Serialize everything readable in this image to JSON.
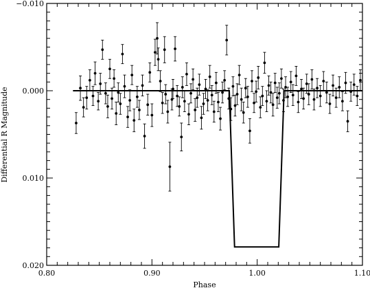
{
  "chart_data": {
    "type": "scatter",
    "title": "",
    "xlabel": "Phase",
    "ylabel": "Differential R Magnitude",
    "xlim": [
      0.8,
      1.1
    ],
    "ylim": [
      -0.01,
      0.02
    ],
    "y_inverted": true,
    "x_ticks": [
      0.8,
      0.9,
      1.0,
      1.1
    ],
    "x_tick_labels": [
      "0.80",
      "0.90",
      "1.00",
      "1.10"
    ],
    "y_ticks": [
      -0.01,
      0.0,
      0.01,
      0.02
    ],
    "y_tick_labels": [
      "−0.010",
      "0.000",
      "0.010",
      "0.020"
    ],
    "grid": false,
    "model_line": {
      "x": [
        0.825,
        0.9735,
        0.9785,
        1.0205,
        1.0255,
        1.1
      ],
      "y": [
        0.0,
        0.0,
        0.0179,
        0.0179,
        0.0,
        0.0
      ]
    },
    "series": [
      {
        "points": [
          {
            "x": 0.828,
            "y": 0.0037,
            "e": 0.0012
          },
          {
            "x": 0.832,
            "y": -0.0003,
            "e": 0.0014
          },
          {
            "x": 0.835,
            "y": 0.0019,
            "e": 0.0011
          },
          {
            "x": 0.838,
            "y": 0.0008,
            "e": 0.0013
          },
          {
            "x": 0.841,
            "y": -0.0012,
            "e": 0.0012
          },
          {
            "x": 0.844,
            "y": 0.0006,
            "e": 0.0011
          },
          {
            "x": 0.846,
            "y": -0.002,
            "e": 0.0013
          },
          {
            "x": 0.849,
            "y": 0.0012,
            "e": 0.001
          },
          {
            "x": 0.851,
            "y": -0.0008,
            "e": 0.0012
          },
          {
            "x": 0.853,
            "y": -0.0047,
            "e": 0.0011
          },
          {
            "x": 0.856,
            "y": 0.0003,
            "e": 0.0012
          },
          {
            "x": 0.858,
            "y": 0.0018,
            "e": 0.0013
          },
          {
            "x": 0.86,
            "y": -0.0025,
            "e": 0.0011
          },
          {
            "x": 0.862,
            "y": 0.0009,
            "e": 0.0012
          },
          {
            "x": 0.864,
            "y": -0.0014,
            "e": 0.001
          },
          {
            "x": 0.866,
            "y": 0.0026,
            "e": 0.0013
          },
          {
            "x": 0.868,
            "y": 0.0002,
            "e": 0.0011
          },
          {
            "x": 0.87,
            "y": 0.0015,
            "e": 0.0012
          },
          {
            "x": 0.872,
            "y": -0.0042,
            "e": 0.0011
          },
          {
            "x": 0.874,
            "y": -0.0005,
            "e": 0.0013
          },
          {
            "x": 0.877,
            "y": 0.003,
            "e": 0.0012
          },
          {
            "x": 0.879,
            "y": 0.0011,
            "e": 0.0012
          },
          {
            "x": 0.881,
            "y": -0.0018,
            "e": 0.0011
          },
          {
            "x": 0.883,
            "y": 0.0034,
            "e": 0.0013
          },
          {
            "x": 0.886,
            "y": 0.0007,
            "e": 0.0012
          },
          {
            "x": 0.888,
            "y": 0.0022,
            "e": 0.0011
          },
          {
            "x": 0.891,
            "y": -0.0006,
            "e": 0.0012
          },
          {
            "x": 0.893,
            "y": 0.0052,
            "e": 0.0014
          },
          {
            "x": 0.896,
            "y": 0.0016,
            "e": 0.0012
          },
          {
            "x": 0.898,
            "y": -0.0021,
            "e": 0.0011
          },
          {
            "x": 0.9,
            "y": 0.0028,
            "e": 0.0013
          },
          {
            "x": 0.903,
            "y": -0.0044,
            "e": 0.0015
          },
          {
            "x": 0.905,
            "y": -0.006,
            "e": 0.0018
          },
          {
            "x": 0.906,
            "y": -0.0036,
            "e": 0.0013
          },
          {
            "x": 0.908,
            "y": -0.0011,
            "e": 0.0012
          },
          {
            "x": 0.91,
            "y": 0.0014,
            "e": 0.0012
          },
          {
            "x": 0.912,
            "y": -0.0047,
            "e": 0.0015
          },
          {
            "x": 0.913,
            "y": 0.0004,
            "e": 0.0011
          },
          {
            "x": 0.915,
            "y": 0.0024,
            "e": 0.0013
          },
          {
            "x": 0.917,
            "y": 0.0087,
            "e": 0.0028
          },
          {
            "x": 0.919,
            "y": 0.001,
            "e": 0.0012
          },
          {
            "x": 0.92,
            "y": -0.0002,
            "e": 0.0011
          },
          {
            "x": 0.922,
            "y": -0.0048,
            "e": 0.0014
          },
          {
            "x": 0.924,
            "y": 0.0006,
            "e": 0.0012
          },
          {
            "x": 0.926,
            "y": 0.0018,
            "e": 0.0011
          },
          {
            "x": 0.928,
            "y": 0.0053,
            "e": 0.0016
          },
          {
            "x": 0.929,
            "y": -0.0004,
            "e": 0.0012
          },
          {
            "x": 0.931,
            "y": 0.0012,
            "e": 0.0012
          },
          {
            "x": 0.933,
            "y": -0.0019,
            "e": 0.0013
          },
          {
            "x": 0.935,
            "y": 0.0027,
            "e": 0.0012
          },
          {
            "x": 0.937,
            "y": 0.0003,
            "e": 0.0011
          },
          {
            "x": 0.939,
            "y": -0.0013,
            "e": 0.0012
          },
          {
            "x": 0.941,
            "y": 0.0022,
            "e": 0.0013
          },
          {
            "x": 0.943,
            "y": 0.0008,
            "e": 0.0011
          },
          {
            "x": 0.945,
            "y": -0.0007,
            "e": 0.0012
          },
          {
            "x": 0.947,
            "y": 0.0031,
            "e": 0.0013
          },
          {
            "x": 0.949,
            "y": 0.0015,
            "e": 0.0012
          },
          {
            "x": 0.951,
            "y": -0.0002,
            "e": 0.0011
          },
          {
            "x": 0.953,
            "y": 0.0011,
            "e": 0.0012
          },
          {
            "x": 0.955,
            "y": -0.0016,
            "e": 0.0013
          },
          {
            "x": 0.957,
            "y": 0.0005,
            "e": 0.0011
          },
          {
            "x": 0.959,
            "y": 0.0024,
            "e": 0.0012
          },
          {
            "x": 0.961,
            "y": -0.0009,
            "e": 0.0012
          },
          {
            "x": 0.963,
            "y": 0.0013,
            "e": 0.0011
          },
          {
            "x": 0.965,
            "y": 0.0032,
            "e": 0.0013
          },
          {
            "x": 0.967,
            "y": 0.0002,
            "e": 0.0012
          },
          {
            "x": 0.969,
            "y": -0.0012,
            "e": 0.0011
          },
          {
            "x": 0.971,
            "y": -0.0058,
            "e": 0.0017
          },
          {
            "x": 0.973,
            "y": 0.0009,
            "e": 0.0012
          },
          {
            "x": 0.975,
            "y": 0.0021,
            "e": 0.0013
          },
          {
            "x": 0.977,
            "y": -0.0005,
            "e": 0.0011
          },
          {
            "x": 0.979,
            "y": 0.0017,
            "e": 0.0012
          },
          {
            "x": 0.981,
            "y": 0.0004,
            "e": 0.0012
          },
          {
            "x": 0.983,
            "y": -0.0018,
            "e": 0.0011
          },
          {
            "x": 0.985,
            "y": 0.001,
            "e": 0.0013
          },
          {
            "x": 0.987,
            "y": 0.0025,
            "e": 0.0012
          },
          {
            "x": 0.989,
            "y": -0.0003,
            "e": 0.0011
          },
          {
            "x": 0.991,
            "y": 0.0007,
            "e": 0.0012
          },
          {
            "x": 0.993,
            "y": 0.0046,
            "e": 0.0014
          },
          {
            "x": 0.995,
            "y": -0.0011,
            "e": 0.0012
          },
          {
            "x": 0.997,
            "y": 0.0014,
            "e": 0.0011
          },
          {
            "x": 0.999,
            "y": 0.0001,
            "e": 0.0012
          },
          {
            "x": 1.001,
            "y": -0.0015,
            "e": 0.0013
          },
          {
            "x": 1.003,
            "y": 0.0019,
            "e": 0.0012
          },
          {
            "x": 1.005,
            "y": 0.0006,
            "e": 0.0011
          },
          {
            "x": 1.007,
            "y": -0.0032,
            "e": 0.0012
          },
          {
            "x": 1.009,
            "y": 0.0012,
            "e": 0.0012
          },
          {
            "x": 1.011,
            "y": -0.0006,
            "e": 0.0011
          },
          {
            "x": 1.013,
            "y": 0.0002,
            "e": 0.0012
          },
          {
            "x": 1.015,
            "y": 0.0016,
            "e": 0.0013
          },
          {
            "x": 1.017,
            "y": -0.0009,
            "e": 0.0011
          },
          {
            "x": 1.019,
            "y": 0.0008,
            "e": 0.0012
          },
          {
            "x": 1.021,
            "y": 0.0003,
            "e": 0.0012
          },
          {
            "x": 1.023,
            "y": -0.0014,
            "e": 0.0011
          },
          {
            "x": 1.025,
            "y": 0.0011,
            "e": 0.0013
          },
          {
            "x": 1.027,
            "y": -0.0004,
            "e": 0.0012
          },
          {
            "x": 1.029,
            "y": 0.0007,
            "e": 0.0011
          },
          {
            "x": 1.032,
            "y": -0.001,
            "e": 0.0012
          },
          {
            "x": 1.034,
            "y": 0.0005,
            "e": 0.0012
          },
          {
            "x": 1.037,
            "y": -0.0017,
            "e": 0.0011
          },
          {
            "x": 1.039,
            "y": 0.0013,
            "e": 0.0012
          },
          {
            "x": 1.042,
            "y": -0.0002,
            "e": 0.0011
          },
          {
            "x": 1.044,
            "y": 0.0009,
            "e": 0.0012
          },
          {
            "x": 1.047,
            "y": -0.0008,
            "e": 0.0011
          },
          {
            "x": 1.049,
            "y": 0.0004,
            "e": 0.0012
          },
          {
            "x": 1.052,
            "y": -0.0013,
            "e": 0.0011
          },
          {
            "x": 1.054,
            "y": 0.001,
            "e": 0.0012
          },
          {
            "x": 1.057,
            "y": -0.0003,
            "e": 0.0011
          },
          {
            "x": 1.06,
            "y": 0.0006,
            "e": 0.0012
          },
          {
            "x": 1.063,
            "y": -0.0011,
            "e": 0.0011
          },
          {
            "x": 1.066,
            "y": 0.0002,
            "e": 0.0012
          },
          {
            "x": 1.069,
            "y": 0.0015,
            "e": 0.0011
          },
          {
            "x": 1.072,
            "y": -0.0006,
            "e": 0.0012
          },
          {
            "x": 1.075,
            "y": 0.0008,
            "e": 0.0011
          },
          {
            "x": 1.078,
            "y": -0.0004,
            "e": 0.0012
          },
          {
            "x": 1.081,
            "y": 0.0012,
            "e": 0.0011
          },
          {
            "x": 1.084,
            "y": -0.0009,
            "e": 0.0012
          },
          {
            "x": 1.086,
            "y": 0.0035,
            "e": 0.0012
          },
          {
            "x": 1.089,
            "y": 0.0001,
            "e": 0.0011
          },
          {
            "x": 1.092,
            "y": -0.0007,
            "e": 0.0012
          },
          {
            "x": 1.095,
            "y": 0.0006,
            "e": 0.0011
          },
          {
            "x": 1.098,
            "y": -0.0012,
            "e": 0.0012
          }
        ]
      }
    ]
  }
}
